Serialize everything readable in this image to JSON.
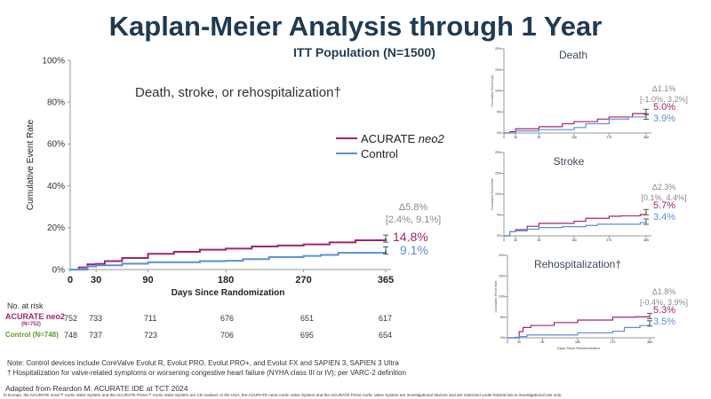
{
  "title": "Kaplan-Meier Analysis through 1 Year",
  "subtitle": "ITT Population (N=1500)",
  "colors": {
    "neo2": "#a0256f",
    "control": "#5a8fd8",
    "control_label": "#5aa02c",
    "title": "#1f3a52",
    "delta": "#8a8a8a"
  },
  "chart_data": [
    {
      "type": "line",
      "title": "Death, stroke, or rehospitalization†",
      "xlabel": "Days Since Randomization",
      "ylabel": "Cumulative Event Rate",
      "xlim": [
        0,
        365
      ],
      "ylim": [
        0,
        100
      ],
      "xticks": [
        0,
        30,
        90,
        180,
        270,
        365
      ],
      "yticks": [
        0,
        20,
        40,
        60,
        80,
        100
      ],
      "ytick_labels": [
        "0%",
        "20%",
        "40%",
        "60%",
        "80%",
        "100%"
      ],
      "legend": "right",
      "series": [
        {
          "name": "ACURATE neo2",
          "name_plain": "ACURATE ",
          "name_italic": "neo2",
          "end_label": "14.8%",
          "x": [
            0,
            10,
            20,
            30,
            40,
            60,
            90,
            120,
            150,
            180,
            210,
            240,
            270,
            300,
            330,
            365
          ],
          "y": [
            0,
            1,
            2.5,
            2.7,
            4,
            5.5,
            7.5,
            8.5,
            9.5,
            10,
            11,
            11.5,
            12,
            13,
            14,
            14.8
          ]
        },
        {
          "name": "Control",
          "end_label": "9.1%",
          "x": [
            0,
            20,
            30,
            50,
            60,
            90,
            150,
            180,
            200,
            230,
            270,
            290,
            310,
            365
          ],
          "y": [
            0,
            1.5,
            2,
            2,
            2.8,
            3.5,
            4,
            4.2,
            5,
            6,
            6.5,
            7,
            8,
            9.1
          ]
        }
      ],
      "delta": "Δ5.8%",
      "ci": "[2.4%, 9.1%]"
    },
    {
      "type": "line",
      "title": "Death",
      "xlim": [
        0,
        365
      ],
      "ylim": [
        0,
        20
      ],
      "xticks": [
        0,
        30,
        90,
        180,
        270,
        365
      ],
      "yticks": [
        0,
        5,
        10,
        15,
        20
      ],
      "series": [
        {
          "name": "ACURATE neo2",
          "end_label": "5.0%",
          "x": [
            0,
            15,
            30,
            90,
            150,
            180,
            240,
            270,
            330,
            365
          ],
          "y": [
            0,
            0.3,
            1,
            1.5,
            2.2,
            2.7,
            3.3,
            3.8,
            4.6,
            5.0
          ]
        },
        {
          "name": "Control",
          "end_label": "3.9%",
          "x": [
            0,
            30,
            90,
            180,
            210,
            270,
            320,
            365
          ],
          "y": [
            0,
            0.5,
            0.8,
            1.3,
            2.2,
            3.3,
            3.8,
            3.9
          ]
        }
      ],
      "delta": "Δ1.1%",
      "ci": "[-1.0%, 3.2%]"
    },
    {
      "type": "line",
      "title": "Stroke",
      "xlim": [
        0,
        365
      ],
      "ylim": [
        0,
        20
      ],
      "xticks": [
        0,
        30,
        90,
        180,
        270,
        365
      ],
      "yticks": [
        0,
        5,
        10,
        15,
        20
      ],
      "series": [
        {
          "name": "ACURATE neo2",
          "end_label": "5.7%",
          "x": [
            0,
            15,
            30,
            60,
            90,
            180,
            210,
            270,
            300,
            350,
            365
          ],
          "y": [
            0,
            1,
            1.5,
            2.3,
            3,
            3.5,
            4.2,
            4.7,
            4.8,
            5.1,
            5.7
          ]
        },
        {
          "name": "Control",
          "end_label": "3.4%",
          "x": [
            0,
            15,
            30,
            60,
            90,
            150,
            210,
            240,
            340,
            350,
            365
          ],
          "y": [
            0,
            1,
            1.2,
            1.6,
            2,
            2.2,
            2.5,
            2.8,
            2.8,
            3.2,
            3.4
          ]
        }
      ],
      "delta": "Δ2.3%",
      "ci": "[0.1%, 4.4%]"
    },
    {
      "type": "line",
      "title": "Rehospitalization†",
      "xlabel": "Days Since Randomization",
      "xlim": [
        0,
        365
      ],
      "ylim": [
        0,
        20
      ],
      "xticks": [
        0,
        30,
        90,
        180,
        270,
        365
      ],
      "yticks": [
        0,
        5,
        10,
        15,
        20
      ],
      "series": [
        {
          "name": "ACURATE neo2",
          "end_label": "5.3%",
          "x": [
            0,
            20,
            30,
            40,
            60,
            120,
            180,
            270,
            330,
            365
          ],
          "y": [
            0,
            0.1,
            1.5,
            2.5,
            3,
            3.7,
            4.3,
            5,
            5.1,
            5.3
          ]
        },
        {
          "name": "Control",
          "end_label": "3.5%",
          "x": [
            0,
            30,
            50,
            180,
            270,
            300,
            340,
            365
          ],
          "y": [
            0,
            0.3,
            0.7,
            1.2,
            1.6,
            2.5,
            3,
            3.5
          ]
        }
      ],
      "delta": "Δ1.8%",
      "ci": "[-0.4%, 3.9%]"
    }
  ],
  "risk_table": {
    "header": "No. at risk",
    "rows": [
      {
        "label": "ACURATE neo2",
        "n": "(N=752)",
        "values": [
          "752",
          "733",
          "711",
          "676",
          "651",
          "617"
        ]
      },
      {
        "label": "Control (N=748)",
        "values": [
          "748",
          "737",
          "723",
          "706",
          "695",
          "654"
        ]
      }
    ]
  },
  "notes": [
    "Note: Control devices include CoreValve Evolut R, Evolut PRO, Evolut PRO+, and Evolut FX and SAPIEN 3, SAPIEN 3 Ultra",
    "† Hospitalization for valve-related symptoms or worsening congestive heart failure (NYHA class III or IV); per VARC-2 definition"
  ],
  "source": "Adapted from Reardon M.  ACURATE IDE at TCT 2024",
  "disclaimer": "In Europe, the ACURATE neo2™ Aortic Valve System and the ACURATE Prime™ Aortic Valve System are CE-marked. In the USA, the ACURATE neo2 Aortic Valve System and the ACURATE Prime Aortic Valve System are investigational devices and are restricted under federal law to investigational use only."
}
